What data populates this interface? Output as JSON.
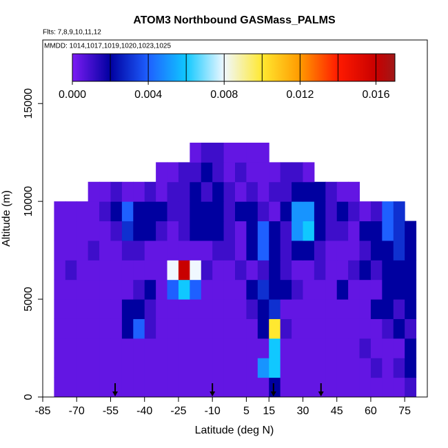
{
  "chart_data": {
    "type": "heatmap",
    "title": "ATOM3 Northbound GASMass_PALMS",
    "subtitle": "Flts: 7,8,9,10,11,12",
    "annotation": "MMDD: 1014,1017,1019,1020,1023,1025",
    "xlabel": "Latitude (deg N)",
    "ylabel": "Altitude (m)",
    "xlim": [
      -85,
      85
    ],
    "ylim": [
      0,
      18250
    ],
    "xticks": [
      -85,
      -70,
      -55,
      -40,
      -25,
      -10,
      5,
      15,
      30,
      45,
      60,
      75
    ],
    "yticks": [
      0,
      5000,
      10000,
      15000
    ],
    "xbins": [
      -80,
      -75,
      -70,
      -65,
      -60,
      -55,
      -50,
      -45,
      -40,
      -35,
      -30,
      -25,
      -20,
      -15,
      -10,
      -5,
      0,
      5,
      10,
      15,
      20,
      25,
      30,
      35,
      40,
      45,
      50,
      55,
      60,
      65,
      70,
      75,
      80
    ],
    "ybins": [
      0,
      1000,
      2000,
      3000,
      4000,
      5000,
      6000,
      7000,
      8000,
      9000,
      10000,
      11000,
      12000,
      13000
    ],
    "values": [
      [
        0.0004,
        0.0004,
        0.0004,
        0.0004,
        0.0004,
        0.0004,
        0.0004,
        0.0004,
        0.0004,
        0.0004,
        0.0004,
        0.0004,
        0.0004,
        0.0004,
        0.0004,
        0.0004,
        0.0004,
        0.0004,
        0.0004,
        0.002,
        0.0004,
        0.0004,
        0.0004,
        0.0004,
        0.0004,
        0.0004,
        0.0004,
        0.0004,
        0.0004,
        0.0004,
        0.0004,
        0.001
      ],
      [
        0.0004,
        0.0004,
        0.0004,
        0.0004,
        0.0004,
        0.0004,
        0.0004,
        0.0004,
        0.0004,
        0.0004,
        0.0004,
        0.0004,
        0.0004,
        0.0004,
        0.0004,
        0.0004,
        0.0004,
        0.0004,
        0.005,
        0.006,
        0.0004,
        0.0004,
        0.0004,
        0.0004,
        0.0004,
        0.0004,
        0.0004,
        0.0004,
        0.001,
        0.0004,
        0.001,
        0.002
      ],
      [
        0.0004,
        0.0004,
        0.0004,
        0.0004,
        0.0004,
        0.0004,
        0.0004,
        0.0004,
        0.0004,
        0.0004,
        0.0004,
        0.0004,
        0.0004,
        0.0004,
        0.0004,
        0.0004,
        0.0004,
        0.0004,
        0.0004,
        0.006,
        0.0004,
        0.0004,
        0.0004,
        0.0004,
        0.0004,
        0.0004,
        0.0004,
        0.001,
        0.0004,
        0.0004,
        0.0004,
        0.002
      ],
      [
        0.0004,
        0.0004,
        0.0004,
        0.0004,
        0.0004,
        0.0004,
        0.002,
        0.004,
        0.001,
        0.0004,
        0.0004,
        0.0004,
        0.0004,
        0.0004,
        0.0004,
        0.0004,
        0.0004,
        0.0004,
        0.002,
        0.01,
        0.001,
        0.0004,
        0.0004,
        0.0004,
        0.0004,
        0.0004,
        0.0004,
        0.0004,
        0.0004,
        0.001,
        0.002,
        0.001
      ],
      [
        0.0004,
        0.0004,
        0.0004,
        0.0004,
        0.0004,
        0.0004,
        0.002,
        0.002,
        0.001,
        0.0004,
        0.0004,
        0.0004,
        0.0004,
        0.0004,
        0.0004,
        0.0004,
        0.0004,
        0.001,
        0.002,
        0.003,
        0.0004,
        0.0004,
        0.0004,
        0.0004,
        0.0004,
        0.0004,
        0.0004,
        0.0004,
        0.002,
        0.002,
        0.001,
        0.002
      ],
      [
        0.0004,
        0.0004,
        0.0004,
        0.0004,
        0.0004,
        0.0004,
        0.0004,
        0.001,
        0.002,
        0.0004,
        0.004,
        0.006,
        0.004,
        0.0004,
        0.0004,
        0.0004,
        0.0004,
        0.002,
        0.003,
        0.002,
        0.002,
        0.001,
        0.0004,
        0.0004,
        0.0004,
        0.002,
        0.0004,
        0.0004,
        0.0004,
        0.002,
        0.002,
        0.002
      ],
      [
        0.0004,
        0.001,
        0.0004,
        0.0004,
        0.0004,
        0.0004,
        0.0004,
        0.0004,
        0.0004,
        0.0004,
        0.008,
        0.016,
        0.008,
        0.001,
        0.0004,
        0.0004,
        0.001,
        0.0004,
        0.001,
        0.002,
        0.001,
        0.0004,
        0.0004,
        0.001,
        0.0004,
        0.0004,
        0.001,
        0.002,
        0.001,
        0.002,
        0.002,
        0.002
      ],
      [
        0.0004,
        0.0004,
        0.0004,
        0.001,
        0.0004,
        0.0004,
        0.001,
        0.001,
        0.0004,
        0.0004,
        0.0004,
        0.0004,
        0.0004,
        0.0004,
        0.001,
        0.001,
        0.0004,
        0.002,
        0.004,
        0.002,
        0.001,
        0.002,
        0.002,
        0.001,
        0.0004,
        0.0004,
        0.0004,
        0.001,
        0.002,
        0.002,
        0.003,
        0.002
      ],
      [
        0.0004,
        0.0004,
        0.0004,
        0.0004,
        0.0004,
        0.001,
        0.003,
        0.002,
        0.002,
        0.001,
        0.0004,
        0.001,
        0.002,
        0.002,
        0.002,
        0.001,
        0.0004,
        0.002,
        0.004,
        0.002,
        0.001,
        0.005,
        0.006,
        0.002,
        0.001,
        0.001,
        0.0004,
        0.002,
        0.002,
        0.004,
        0.003,
        0.002
      ],
      [
        0.0004,
        0.0004,
        0.0004,
        0.0004,
        0.001,
        0.002,
        0.004,
        0.002,
        0.002,
        0.002,
        0.001,
        0.001,
        0.002,
        0.002,
        0.002,
        0.001,
        0.002,
        0.002,
        0.001,
        0.0004,
        0.002,
        0.005,
        0.005,
        0.002,
        0.001,
        0.002,
        0.001,
        0.0004,
        0.001,
        0.004,
        0.003,
        null
      ],
      [
        null,
        null,
        null,
        0.0004,
        0.0004,
        0.001,
        0.0004,
        0.0004,
        0.001,
        0.0004,
        0.001,
        0.001,
        0.002,
        0.001,
        0.002,
        0.001,
        0.0004,
        0.001,
        0.0004,
        0.001,
        0.001,
        0.002,
        0.002,
        0.002,
        0.001,
        0.0004,
        0.0004,
        null,
        null,
        null,
        null,
        null
      ],
      [
        null,
        null,
        null,
        null,
        null,
        null,
        null,
        null,
        null,
        0.0004,
        0.0004,
        0.001,
        0.001,
        0.002,
        0.001,
        0.0004,
        0.001,
        0.0004,
        0.0004,
        0.0004,
        0.001,
        0.001,
        0.0004,
        null,
        null,
        null,
        null,
        null,
        null,
        null,
        null,
        null
      ],
      [
        null,
        null,
        null,
        null,
        null,
        null,
        null,
        null,
        null,
        null,
        null,
        null,
        0.0004,
        0.001,
        0.001,
        0.0004,
        0.0004,
        0.0004,
        0.0004,
        null,
        null,
        null,
        null,
        null,
        null,
        null,
        null,
        null,
        null,
        null,
        null,
        null
      ]
    ],
    "colorbar": {
      "stops": [
        0,
        0.002,
        0.004,
        0.006,
        0.008,
        0.01,
        0.012,
        0.014,
        0.016,
        0.017
      ],
      "colors": [
        "#7c1cf4",
        "#0000a0",
        "#1e60ff",
        "#10c8ff",
        "#f0f8ff",
        "#ffe830",
        "#ff9a00",
        "#ff1a00",
        "#c80000",
        "#a01818"
      ],
      "ticks": [
        {
          "value": 0,
          "label": "0.000"
        },
        0.004,
        0.008,
        0.012,
        0.016
      ]
    },
    "arrows_x": [
      -53,
      -10,
      17,
      38
    ]
  }
}
